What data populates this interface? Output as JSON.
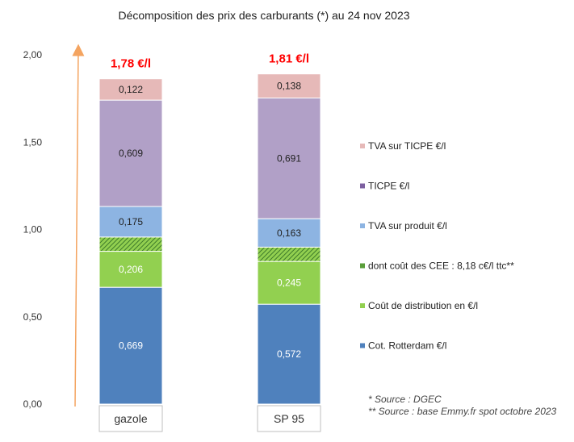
{
  "chart_data": {
    "type": "bar",
    "stacked": true,
    "title": "Décomposition des prix des carburants (*) au 24 nov 2023",
    "ylim": [
      0,
      2
    ],
    "yticks": [
      "0,00",
      "0,50",
      "1,00",
      "1,50",
      "2,00"
    ],
    "categories": [
      "gazole",
      "SP 95"
    ],
    "totals": [
      "1,78 €/l",
      "1,81 €/l"
    ],
    "series": [
      {
        "name": "Cot. Rotterdam €/l",
        "values": [
          0.669,
          0.572
        ],
        "labels": [
          "0,669",
          "0,572"
        ],
        "color": "#4f81bd"
      },
      {
        "name": "Coût de distribution en €/l",
        "values": [
          0.206,
          0.245
        ],
        "labels": [
          "0,206",
          "0,245"
        ],
        "color": "#92d050"
      },
      {
        "name": "dont coût des CEE : 8,18 c€/l ttc**",
        "values": [
          0.0818,
          0.0818
        ],
        "labels": [
          "",
          ""
        ],
        "color": "#5a9e3a",
        "pattern": "hatch"
      },
      {
        "name": "TVA sur produit €/l",
        "values": [
          0.175,
          0.163
        ],
        "labels": [
          "0,175",
          "0,163"
        ],
        "color": "#8db4e2"
      },
      {
        "name": "TICPE €/l",
        "values": [
          0.609,
          0.691
        ],
        "labels": [
          "0,609",
          "0,691"
        ],
        "color": "#b1a0c7"
      },
      {
        "name": "TVA sur TICPE €/l",
        "values": [
          0.122,
          0.138
        ],
        "labels": [
          "0,122",
          "0,138"
        ],
        "color": "#e6b9b8"
      }
    ],
    "legend_order": [
      5,
      4,
      3,
      2,
      1,
      0
    ],
    "legend_placement": "right",
    "legend_swatch_colors": [
      "#e6b9b8",
      "#7d60a0",
      "#8db4e2",
      "#5a9e3a",
      "#92d050",
      "#4f81bd"
    ],
    "segment_label_colors": [
      "#ffffff",
      "#ffffff",
      "#ffffff",
      "#222222",
      "#222222",
      "#222222"
    ],
    "arrow_color": "#f4a460",
    "sources": [
      "* Source : DGEC",
      "** Source : base Emmy.fr spot octobre 2023"
    ]
  }
}
